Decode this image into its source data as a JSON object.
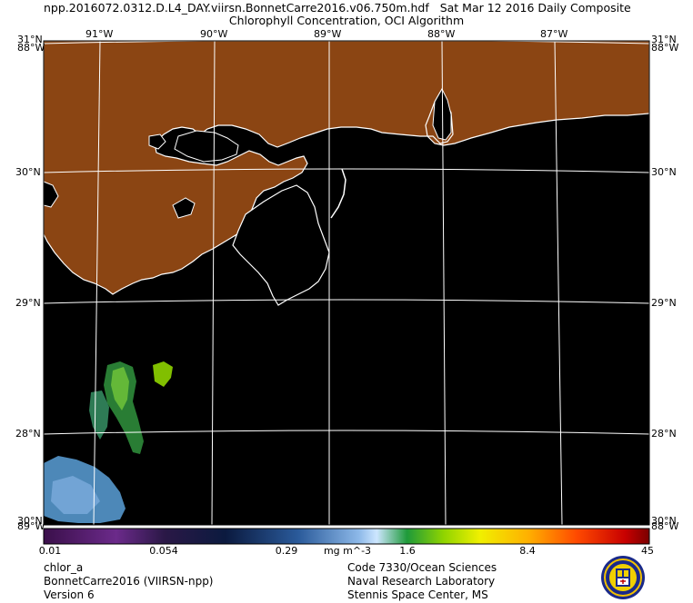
{
  "header": {
    "filename": "npp.2016072.0312.D.L4_DAY.viirsn.BonnetCarre2016.v06.750m.hdf",
    "date": "Sat Mar 12 2016 Daily Composite",
    "subtitle": "Chlorophyll Concentration, OCI Algorithm"
  },
  "map": {
    "longitudes": [
      {
        "value": -91,
        "label": "91°W"
      },
      {
        "value": -90,
        "label": "90°W"
      },
      {
        "value": -89,
        "label": "89°W"
      },
      {
        "value": -88,
        "label": "88°W"
      },
      {
        "value": -87,
        "label": "87°W"
      }
    ],
    "latitudes": [
      {
        "value": 31,
        "label": "31°N"
      },
      {
        "value": 30,
        "label": "30°N"
      },
      {
        "value": 29,
        "label": "29°N"
      },
      {
        "value": 28,
        "label": "28°N"
      }
    ],
    "corner_labels": {
      "top_left_lat": "31°N",
      "top_left_lon": "88°W",
      "top_right_lat": "31°N",
      "top_right_lon": "88°W",
      "bottom_left_lat": "30°N",
      "bottom_left_lon": "89°W",
      "bottom_right_lat": "30°N",
      "bottom_right_lon": "88°W"
    },
    "colors": {
      "land": "#8B4513",
      "water": "#000000",
      "coastline": "#ffffff",
      "grid": "#ffffff"
    }
  },
  "colorbar": {
    "variable": "chlor_a",
    "units": "mg m^-3",
    "ticks": [
      "0.01",
      "0.054",
      "0.29",
      "1.6",
      "8.4",
      "45"
    ],
    "min": 0.01,
    "max": 45,
    "scale": "log"
  },
  "footer": {
    "left": [
      "chlor_a",
      "BonnetCarre2016 (VIIRSN-npp)",
      "Version 6"
    ],
    "right": [
      "Code 7330/Ocean Sciences",
      "Naval Research Laboratory",
      "Stennis Space Center, MS"
    ]
  }
}
